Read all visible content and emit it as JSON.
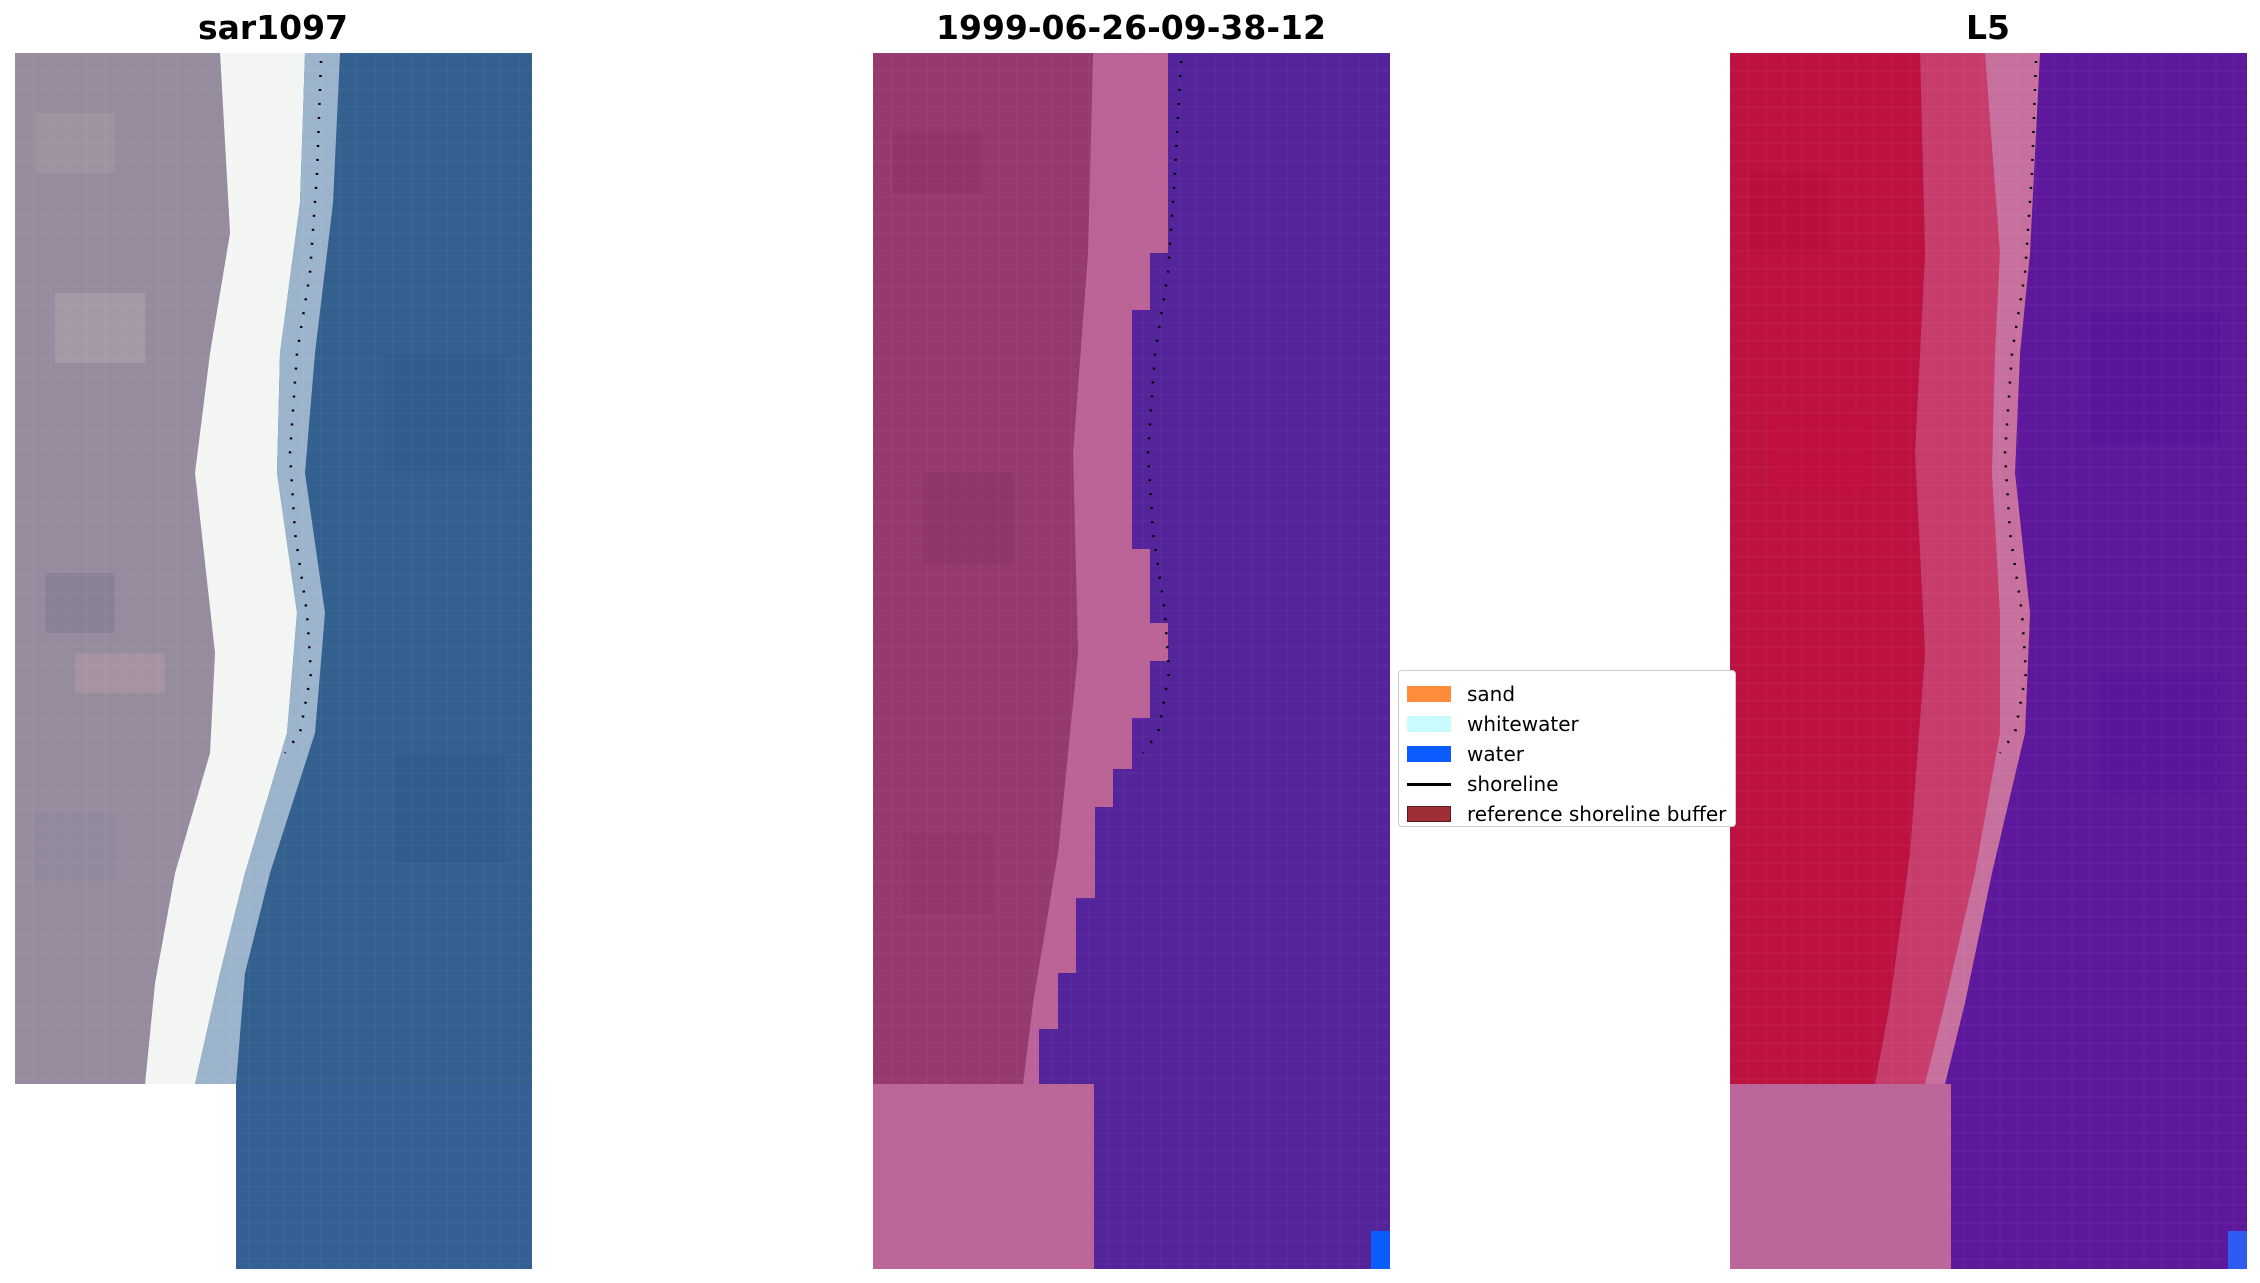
{
  "panels": [
    {
      "title": "sar1097",
      "kind": "rgb-image"
    },
    {
      "title": "1999-06-26-09-38-12",
      "kind": "classified-image"
    },
    {
      "title": "L5",
      "kind": "index-image"
    }
  ],
  "legend": {
    "items": [
      {
        "label": "sand",
        "color": "#ff8c3a",
        "type": "patch"
      },
      {
        "label": "whitewater",
        "color": "#c8fcff",
        "type": "patch"
      },
      {
        "label": "water",
        "color": "#0a5cff",
        "type": "patch"
      },
      {
        "label": "shoreline",
        "color": "#000000",
        "type": "line"
      },
      {
        "label": "reference shoreline buffer",
        "color": "#9e2f36",
        "type": "patch"
      }
    ]
  },
  "colors": {
    "rgb_sand_grey": "#9a8f9e",
    "rgb_whitewater": "#f4f6f5",
    "rgb_water": "#355f94",
    "classified_sand_overlay": "#9b3e72",
    "classified_whitewater_overlay": "#bc6396",
    "classified_water_overlay": "#54249a",
    "index_land": "#c01236",
    "index_water": "#5b189a",
    "water_pixel": "#0a5cff"
  }
}
